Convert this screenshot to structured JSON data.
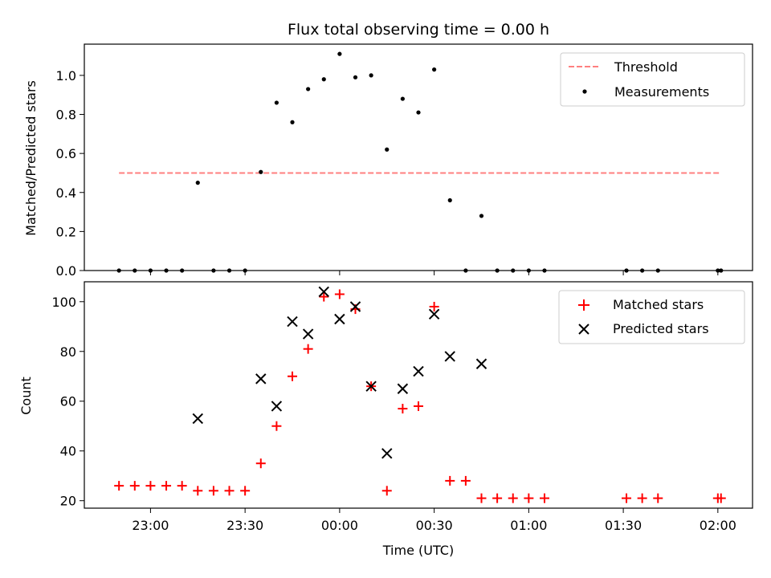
{
  "chart_data": [
    {
      "type": "scatter",
      "title": "Flux total observing time = 0.00 h",
      "xlabel": "",
      "ylabel": "Matched/Predicted stars",
      "xlim": [
        "22:39",
        "02:11"
      ],
      "ylim": [
        0,
        1.16
      ],
      "yticks": [
        0.0,
        0.2,
        0.4,
        0.6,
        0.8,
        1.0
      ],
      "ytick_labels": [
        "0.0",
        "0.2",
        "0.4",
        "0.6",
        "0.8",
        "1.0"
      ],
      "grid": false,
      "legend_position": "upper right",
      "series": [
        {
          "name": "Threshold",
          "kind": "line",
          "style": "dashed",
          "color": "#ff7f7f",
          "x": [
            "22:50",
            "02:01"
          ],
          "y": [
            0.5,
            0.5
          ]
        },
        {
          "name": "Measurements",
          "kind": "scatter",
          "marker": "dot",
          "color": "#000000",
          "x": [
            "22:50",
            "22:55",
            "23:00",
            "23:05",
            "23:10",
            "23:15",
            "23:20",
            "23:25",
            "23:30",
            "23:35",
            "23:40",
            "23:45",
            "23:50",
            "23:55",
            "00:00",
            "00:05",
            "00:10",
            "00:15",
            "00:20",
            "00:25",
            "00:30",
            "00:35",
            "00:40",
            "00:45",
            "00:50",
            "00:55",
            "01:00",
            "01:05",
            "01:31",
            "01:36",
            "01:41",
            "02:00",
            "02:01"
          ],
          "y": [
            0,
            0,
            0,
            0,
            0,
            0.45,
            0,
            0,
            0,
            0.505,
            0.86,
            0.76,
            0.93,
            0.98,
            1.11,
            0.99,
            1.0,
            0.62,
            0.88,
            0.81,
            1.03,
            0.36,
            0,
            0.28,
            0,
            0,
            0,
            0,
            0,
            0,
            0,
            0,
            0
          ]
        }
      ]
    },
    {
      "type": "scatter",
      "title": "",
      "xlabel": "Time (UTC)",
      "ylabel": "Count",
      "xlim": [
        "22:39",
        "02:11"
      ],
      "ylim": [
        17,
        108
      ],
      "yticks": [
        20,
        40,
        60,
        80,
        100
      ],
      "ytick_labels": [
        "20",
        "40",
        "60",
        "80",
        "100"
      ],
      "xtick_labels": [
        "23:00",
        "23:30",
        "00:00",
        "00:30",
        "01:00",
        "01:30",
        "02:00"
      ],
      "grid": false,
      "legend_position": "upper right",
      "series": [
        {
          "name": "Matched stars",
          "kind": "scatter",
          "marker": "plus",
          "color": "#ff0000",
          "x": [
            "22:50",
            "22:55",
            "23:00",
            "23:05",
            "23:10",
            "23:15",
            "23:20",
            "23:25",
            "23:30",
            "23:35",
            "23:40",
            "23:45",
            "23:50",
            "23:55",
            "00:00",
            "00:05",
            "00:10",
            "00:15",
            "00:20",
            "00:25",
            "00:30",
            "00:35",
            "00:40",
            "00:45",
            "00:50",
            "00:55",
            "01:00",
            "01:05",
            "01:31",
            "01:36",
            "01:41",
            "02:00",
            "02:01"
          ],
          "y": [
            26,
            26,
            26,
            26,
            26,
            24,
            24,
            24,
            24,
            35,
            50,
            70,
            81,
            102,
            103,
            97,
            66,
            24,
            57,
            58,
            98,
            28,
            28,
            21,
            21,
            21,
            21,
            21,
            21,
            21,
            21,
            21,
            21
          ]
        },
        {
          "name": "Predicted stars",
          "kind": "scatter",
          "marker": "x",
          "color": "#000000",
          "x": [
            "23:15",
            "23:35",
            "23:40",
            "23:45",
            "23:50",
            "23:55",
            "00:00",
            "00:05",
            "00:10",
            "00:15",
            "00:20",
            "00:25",
            "00:30",
            "00:35",
            "00:45"
          ],
          "y": [
            53,
            69,
            58,
            92,
            87,
            104,
            93,
            98,
            66,
            39,
            65,
            72,
            95,
            78,
            75
          ]
        }
      ]
    }
  ]
}
